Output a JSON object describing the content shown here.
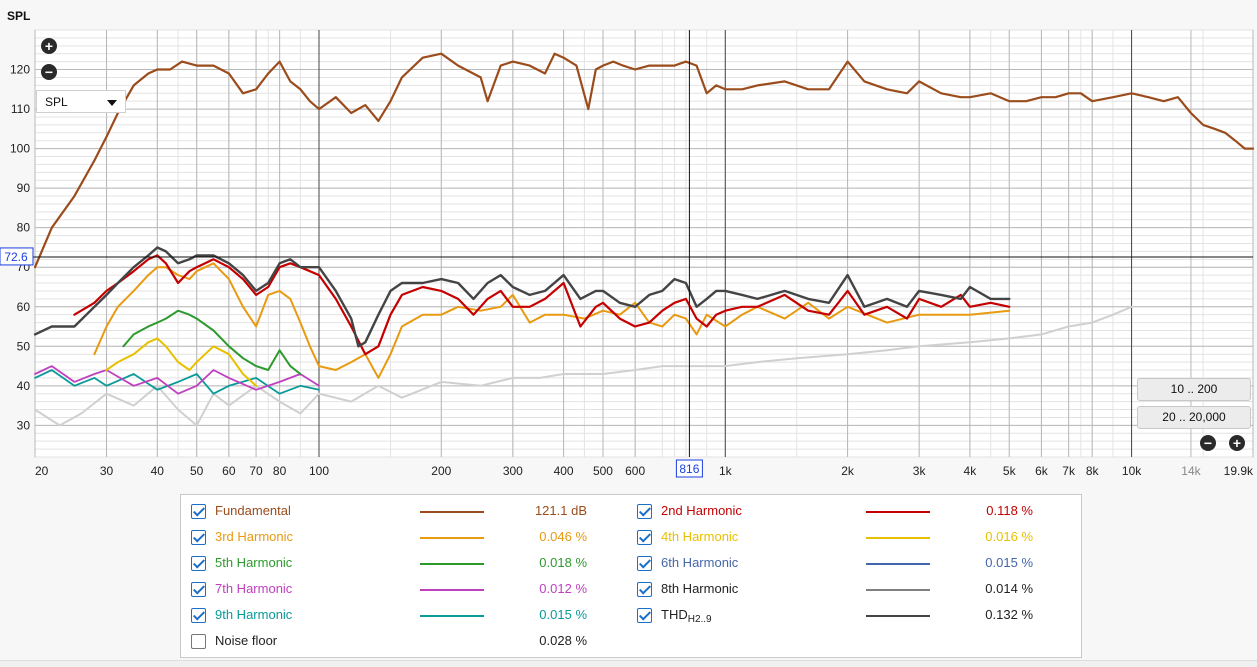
{
  "header": {
    "y_axis_title": "SPL"
  },
  "toolbar": {
    "zoom_in_icon": "plus-circle-icon",
    "zoom_out_icon": "minus-circle-icon",
    "select_value": "SPL",
    "range_button_1": "10 .. 200",
    "range_button_2": "20 .. 20,000"
  },
  "cursor": {
    "x_readout": "816",
    "y_readout": "72.6"
  },
  "legend": {
    "items": [
      {
        "name": "Fundamental",
        "value": "121.1 dB",
        "color": "#9b4c1c",
        "checked": true
      },
      {
        "name": "2nd Harmonic",
        "value": "0.118 %",
        "color": "#c40000",
        "checked": true
      },
      {
        "name": "3rd Harmonic",
        "value": "0.046 %",
        "color": "#e89a10",
        "checked": true
      },
      {
        "name": "4th Harmonic",
        "value": "0.016 %",
        "color": "#e8c000",
        "checked": true
      },
      {
        "name": "5th Harmonic",
        "value": "0.018 %",
        "color": "#2e9a2e",
        "checked": true
      },
      {
        "name": "6th Harmonic",
        "value": "0.015 %",
        "color": "#4466aa",
        "checked": true
      },
      {
        "name": "7th Harmonic",
        "value": "0.012 %",
        "color": "#c040c0",
        "checked": true
      },
      {
        "name": "8th Harmonic",
        "value": "0.014 %",
        "color": "#808080",
        "checked": true
      },
      {
        "name": "9th Harmonic",
        "value": "0.015 %",
        "color": "#0a9a9a",
        "checked": true
      },
      {
        "name": "THD",
        "sub": "H2..9",
        "value": "0.132 %",
        "color": "#444444",
        "checked": true
      },
      {
        "name": "Noise floor",
        "value": "0.028 %",
        "color": "#c8c8c8",
        "checked": false
      }
    ]
  },
  "chart_data": {
    "type": "line",
    "title": "",
    "xlabel": "",
    "ylabel": "SPL",
    "xscale": "log",
    "xlim": [
      20,
      19900
    ],
    "ylim": [
      22,
      130
    ],
    "y_ticks": [
      30,
      40,
      50,
      60,
      70,
      80,
      90,
      100,
      110,
      120
    ],
    "x_ticks": [
      {
        "v": 20,
        "label": "20"
      },
      {
        "v": 30,
        "label": "30"
      },
      {
        "v": 40,
        "label": "40"
      },
      {
        "v": 50,
        "label": "50"
      },
      {
        "v": 60,
        "label": "60"
      },
      {
        "v": 70,
        "label": "70"
      },
      {
        "v": 80,
        "label": "80"
      },
      {
        "v": 100,
        "label": "100"
      },
      {
        "v": 200,
        "label": "200"
      },
      {
        "v": 300,
        "label": "300"
      },
      {
        "v": 400,
        "label": "400"
      },
      {
        "v": 500,
        "label": "500"
      },
      {
        "v": 600,
        "label": "600"
      },
      {
        "v": 1000,
        "label": "1k"
      },
      {
        "v": 2000,
        "label": "2k"
      },
      {
        "v": 3000,
        "label": "3k"
      },
      {
        "v": 4000,
        "label": "4k"
      },
      {
        "v": 5000,
        "label": "5k"
      },
      {
        "v": 6000,
        "label": "6k"
      },
      {
        "v": 7000,
        "label": "7k"
      },
      {
        "v": 8000,
        "label": "8k"
      },
      {
        "v": 10000,
        "label": "10k"
      },
      {
        "v": 14000,
        "label": "14k"
      },
      {
        "v": 19900,
        "label": "19.9k"
      }
    ],
    "cursor": {
      "x": 816,
      "y": 72.6
    },
    "series": [
      {
        "name": "Fundamental",
        "color": "#9b4c1c",
        "width": 2.2,
        "x": [
          20,
          22,
          25,
          28,
          30,
          32,
          35,
          38,
          40,
          43,
          46,
          50,
          55,
          60,
          65,
          70,
          75,
          80,
          85,
          90,
          95,
          100,
          110,
          120,
          130,
          140,
          150,
          160,
          180,
          200,
          220,
          250,
          260,
          280,
          300,
          330,
          360,
          380,
          400,
          430,
          460,
          480,
          500,
          530,
          560,
          600,
          650,
          700,
          750,
          800,
          850,
          900,
          950,
          1000,
          1100,
          1200,
          1400,
          1600,
          1800,
          2000,
          2200,
          2500,
          2800,
          3000,
          3400,
          3800,
          4000,
          4500,
          5000,
          5500,
          6000,
          6500,
          7000,
          7500,
          8000,
          9000,
          10000,
          11000,
          12000,
          13000,
          14000,
          15000,
          16000,
          17000,
          18000,
          19000,
          19900
        ],
        "y": [
          70,
          80,
          88,
          97,
          103,
          109,
          116,
          119,
          120,
          120,
          122,
          121,
          121,
          119,
          114,
          115,
          119,
          122,
          117,
          115,
          112,
          110,
          113,
          109,
          111,
          107,
          112,
          118,
          123,
          124,
          121,
          118,
          112,
          121,
          122,
          121,
          119,
          124,
          123,
          121,
          110,
          120,
          121,
          122,
          121,
          120,
          121,
          121,
          121,
          122,
          121,
          114,
          116,
          115,
          115,
          116,
          117,
          115,
          115,
          122,
          117,
          115,
          114,
          117,
          114,
          113,
          113,
          114,
          112,
          112,
          113,
          113,
          114,
          114,
          112,
          113,
          114,
          113,
          112,
          113,
          109,
          106,
          105,
          104,
          102,
          100,
          100
        ]
      },
      {
        "name": "THD",
        "color": "#444444",
        "width": 2.4,
        "x": [
          20,
          22,
          25,
          28,
          30,
          32,
          35,
          38,
          40,
          42,
          45,
          48,
          50,
          55,
          60,
          65,
          70,
          75,
          80,
          85,
          90,
          95,
          100,
          110,
          120,
          125,
          130,
          140,
          150,
          160,
          180,
          200,
          220,
          240,
          260,
          280,
          300,
          330,
          360,
          400,
          440,
          480,
          500,
          550,
          600,
          650,
          700,
          750,
          800,
          850,
          900,
          950,
          1000,
          1100,
          1200,
          1400,
          1600,
          1800,
          2000,
          2200,
          2500,
          2800,
          3000,
          3400,
          3800,
          4000,
          4500,
          5000
        ],
        "y": [
          53,
          55,
          55,
          60,
          63,
          66,
          70,
          73,
          75,
          74,
          71,
          72,
          73,
          73,
          71,
          68,
          64,
          66,
          71,
          72,
          70,
          70,
          70,
          64,
          57,
          50,
          51,
          58,
          64,
          66,
          66,
          67,
          66,
          62,
          66,
          68,
          65,
          63,
          64,
          68,
          62,
          64,
          64,
          61,
          60,
          63,
          64,
          67,
          66,
          60,
          62,
          64,
          64,
          63,
          62,
          64,
          62,
          61,
          68,
          60,
          62,
          60,
          64,
          63,
          62,
          65,
          62,
          62
        ]
      },
      {
        "name": "2nd Harmonic",
        "color": "#c40000",
        "width": 2.2,
        "x": [
          25,
          28,
          30,
          32,
          35,
          38,
          40,
          42,
          45,
          48,
          50,
          55,
          60,
          65,
          70,
          75,
          80,
          85,
          90,
          95,
          100,
          110,
          120,
          130,
          140,
          150,
          160,
          180,
          200,
          220,
          240,
          260,
          280,
          300,
          330,
          360,
          400,
          440,
          480,
          500,
          550,
          600,
          650,
          700,
          750,
          800,
          850,
          900,
          950,
          1000,
          1100,
          1200,
          1400,
          1600,
          1800,
          2000,
          2200,
          2500,
          2800,
          3000,
          3400,
          3800,
          4000,
          4500,
          5000
        ],
        "y": [
          58,
          61,
          64,
          66,
          69,
          72,
          73,
          71,
          66,
          69,
          70,
          72,
          70,
          67,
          63,
          65,
          70,
          71,
          70,
          69,
          68,
          62,
          55,
          48,
          50,
          58,
          63,
          65,
          64,
          62,
          58,
          62,
          64,
          60,
          60,
          62,
          66,
          55,
          60,
          61,
          57,
          55,
          56,
          59,
          61,
          62,
          57,
          55,
          58,
          59,
          60,
          60,
          63,
          59,
          58,
          64,
          58,
          60,
          57,
          62,
          60,
          63,
          60,
          61,
          60
        ]
      },
      {
        "name": "3rd Harmonic",
        "color": "#e89a10",
        "width": 2,
        "x": [
          28,
          30,
          32,
          35,
          38,
          40,
          42,
          45,
          48,
          50,
          55,
          60,
          65,
          70,
          75,
          80,
          85,
          90,
          95,
          100,
          110,
          120,
          130,
          140,
          150,
          160,
          180,
          200,
          220,
          250,
          280,
          300,
          330,
          360,
          400,
          450,
          500,
          550,
          600,
          650,
          700,
          750,
          800,
          850,
          900,
          1000,
          1100,
          1200,
          1400,
          1600,
          1800,
          2000,
          2500,
          3000,
          4000,
          5000
        ],
        "y": [
          48,
          55,
          60,
          64,
          68,
          70,
          70,
          68,
          67,
          69,
          71,
          67,
          60,
          55,
          63,
          64,
          62,
          56,
          50,
          45,
          44,
          46,
          48,
          42,
          48,
          55,
          58,
          58,
          60,
          59,
          60,
          63,
          56,
          58,
          58,
          57,
          59,
          58,
          61,
          56,
          55,
          58,
          57,
          53,
          58,
          55,
          58,
          60,
          57,
          61,
          57,
          60,
          56,
          58,
          58,
          59
        ]
      },
      {
        "name": "5th Harmonic",
        "color": "#2e9a2e",
        "width": 2,
        "x": [
          33,
          35,
          38,
          40,
          42,
          45,
          48,
          50,
          55,
          60,
          65,
          70,
          75,
          80,
          85,
          90
        ],
        "y": [
          50,
          53,
          55,
          56,
          57,
          59,
          58,
          57,
          54,
          50,
          47,
          45,
          44,
          49,
          45,
          43
        ]
      },
      {
        "name": "4th Harmonic",
        "color": "#e8c000",
        "width": 2,
        "x": [
          30,
          32,
          35,
          38,
          40,
          42,
          45,
          48,
          50,
          55,
          60,
          65,
          70
        ],
        "y": [
          44,
          46,
          48,
          51,
          52,
          50,
          46,
          44,
          46,
          50,
          48,
          43,
          40
        ]
      },
      {
        "name": "7th Harmonic",
        "color": "#c040c0",
        "width": 1.8,
        "x": [
          20,
          22,
          25,
          28,
          30,
          35,
          40,
          45,
          50,
          55,
          60,
          70,
          80,
          90,
          100
        ],
        "y": [
          43,
          45,
          41,
          43,
          44,
          40,
          42,
          38,
          40,
          44,
          42,
          39,
          41,
          43,
          40
        ]
      },
      {
        "name": "9th Harmonic",
        "color": "#0a9a9a",
        "width": 1.8,
        "x": [
          20,
          22,
          25,
          28,
          30,
          35,
          40,
          45,
          50,
          55,
          60,
          70,
          80,
          90,
          100
        ],
        "y": [
          42,
          44,
          40,
          42,
          40,
          43,
          39,
          41,
          43,
          38,
          40,
          42,
          38,
          40,
          39
        ]
      },
      {
        "name": "Noise floor",
        "color": "#d0d0d0",
        "width": 2,
        "x": [
          20,
          23,
          26,
          30,
          35,
          40,
          45,
          50,
          55,
          60,
          70,
          80,
          90,
          100,
          120,
          140,
          160,
          200,
          250,
          300,
          350,
          400,
          500,
          600,
          700,
          800,
          1000,
          1200,
          1500,
          2000,
          2500,
          3000,
          4000,
          5000,
          6000,
          7000,
          8000,
          9000,
          10000
        ],
        "y": [
          34,
          30,
          33,
          38,
          35,
          40,
          34,
          30,
          38,
          35,
          40,
          36,
          33,
          38,
          36,
          40,
          37,
          41,
          40,
          42,
          42,
          43,
          43,
          44,
          45,
          45,
          45,
          46,
          47,
          48,
          49,
          50,
          51,
          52,
          53,
          55,
          56,
          58,
          60
        ]
      }
    ]
  }
}
